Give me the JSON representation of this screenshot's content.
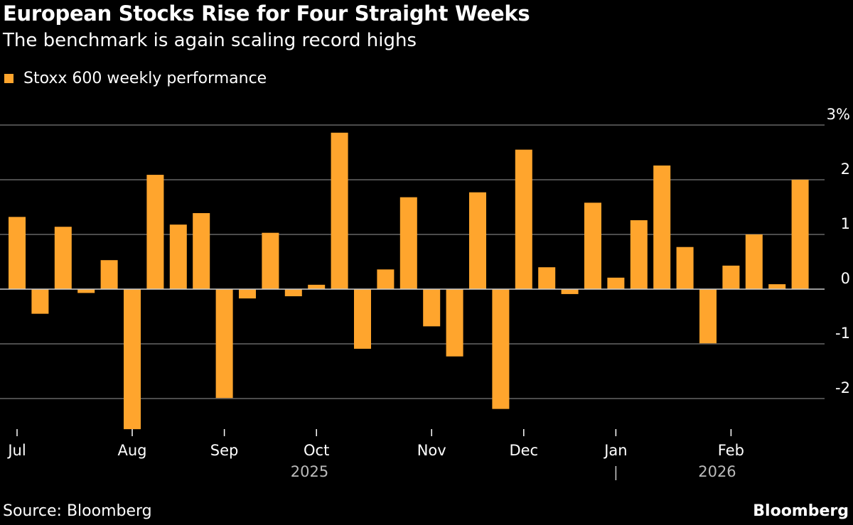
{
  "header": {
    "title": "European Stocks Rise for Four Straight Weeks",
    "subtitle": "The benchmark is again scaling record highs"
  },
  "footer": {
    "source": "Source: Bloomberg",
    "brand": "Bloomberg"
  },
  "colors": {
    "bar": "#FFA52D",
    "grid": "#666666",
    "zero": "#cccccc",
    "background": "#000000"
  },
  "chart_data": {
    "type": "bar",
    "title": "European Stocks Rise for Four Straight Weeks",
    "subtitle": "The benchmark is again scaling record highs",
    "legend": [
      {
        "label": "Stoxx 600 weekly performance",
        "placement": "top-left"
      }
    ],
    "ylim": [
      -2.6,
      3
    ],
    "yticks": [
      {
        "v": 3,
        "label": "3%"
      },
      {
        "v": 2,
        "label": "2"
      },
      {
        "v": 1,
        "label": "1"
      },
      {
        "v": 0,
        "label": "0"
      },
      {
        "v": -1,
        "label": "-1"
      },
      {
        "v": -2,
        "label": "-2"
      }
    ],
    "values": [
      1.32,
      -0.45,
      1.14,
      -0.07,
      0.53,
      -2.56,
      2.09,
      1.18,
      1.39,
      -1.99,
      -0.17,
      1.03,
      -0.13,
      0.08,
      2.86,
      -1.09,
      0.36,
      1.68,
      -0.68,
      -1.23,
      1.77,
      -2.19,
      2.55,
      0.4,
      -0.09,
      1.58,
      0.21,
      1.26,
      2.26,
      0.77,
      -0.99,
      0.43,
      1.0,
      0.09,
      2.0
    ],
    "xticks": [
      {
        "label": "Jul",
        "week": 0
      },
      {
        "label": "Aug",
        "week": 5
      },
      {
        "label": "Sep",
        "week": 9
      },
      {
        "label": "Oct",
        "week": 13
      },
      {
        "label": "Nov",
        "week": 18
      },
      {
        "label": "Dec",
        "week": 22
      },
      {
        "label": "Jan",
        "week": 26
      },
      {
        "label": "Feb",
        "week": 31
      }
    ],
    "years": [
      {
        "label": "2025",
        "week": 12.7
      },
      {
        "label": "2026",
        "week": 30.4
      }
    ],
    "year_separator_week": 26
  }
}
